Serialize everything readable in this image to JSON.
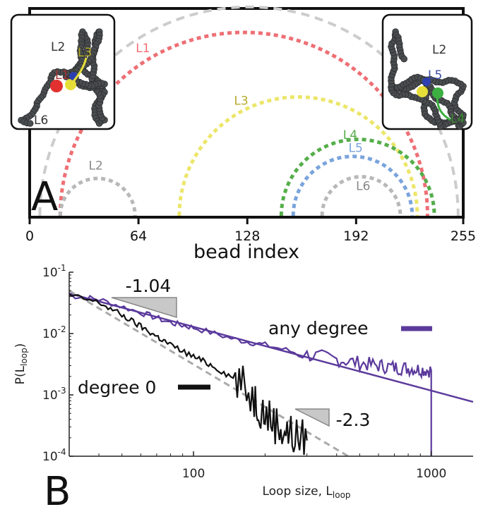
{
  "chart_data": [
    {
      "panel": "A",
      "type": "arc-diagram",
      "xlabel": "bead index",
      "xlim": [
        0,
        255
      ],
      "x_ticks": [
        "0",
        "64",
        "128",
        "192",
        "255"
      ],
      "loops": [
        {
          "name": "L1",
          "start": 18,
          "end": 234,
          "color": "#ee6f75"
        },
        {
          "name": "L2",
          "start": 18,
          "end": 62,
          "color": "#b8b8b8"
        },
        {
          "name": "L3",
          "start": 88,
          "end": 228,
          "color": "#ece66a"
        },
        {
          "name": "L4",
          "start": 148,
          "end": 238,
          "color": "#55ae4a"
        },
        {
          "name": "L5",
          "start": 155,
          "end": 225,
          "color": "#7aa4dc"
        },
        {
          "name": "L6",
          "start": 172,
          "end": 218,
          "color": "#b8b8b8"
        },
        {
          "name": "",
          "start": 6,
          "end": 252,
          "color": "#cccccc"
        }
      ],
      "inset_left_labels": [
        "L2",
        "L3",
        "L1",
        "L6"
      ],
      "inset_right_labels": [
        "L2",
        "L5",
        "L4"
      ]
    },
    {
      "panel": "B",
      "type": "line",
      "xlabel_main": "Loop size, L",
      "xlabel_sub": "loop",
      "ylabel_main": "P(L",
      "ylabel_sub": "loop",
      "ylabel_close": ")",
      "xscale": "log",
      "yscale": "log",
      "xlim": [
        30,
        1500
      ],
      "ylim": [
        0.0001,
        0.1
      ],
      "x_ticks": [
        "100",
        "1000"
      ],
      "y_ticks": [
        {
          "base": "10",
          "exp": "-1"
        },
        {
          "base": "10",
          "exp": "-2"
        },
        {
          "base": "10",
          "exp": "-3"
        },
        {
          "base": "10",
          "exp": "-4"
        }
      ],
      "series": [
        {
          "name": "any degree",
          "color": "#5b3a9c",
          "x": [
            30,
            40,
            60,
            80,
            100,
            150,
            200,
            300,
            400,
            500,
            600,
            700,
            800,
            900,
            1000,
            1000
          ],
          "y": [
            0.042,
            0.036,
            0.022,
            0.015,
            0.0125,
            0.008,
            0.0065,
            0.0045,
            0.0038,
            0.0033,
            0.003,
            0.0028,
            0.0027,
            0.0026,
            0.0025,
            0.0001
          ]
        },
        {
          "name": "degree 0",
          "color": "#111111",
          "x": [
            30,
            40,
            50,
            60,
            70,
            80,
            100,
            120,
            150,
            180,
            200,
            230,
            260,
            300
          ],
          "y": [
            0.042,
            0.032,
            0.02,
            0.013,
            0.009,
            0.0065,
            0.0042,
            0.003,
            0.0018,
            0.0009,
            0.0005,
            0.0003,
            0.00022,
            0.00018
          ]
        }
      ],
      "fits": [
        {
          "slope_label": "-1.04",
          "exponent": -1.04,
          "x": [
            30,
            1500
          ],
          "y_at_30": 0.045,
          "color": "#5b3a9c"
        },
        {
          "slope_label": "-2.3",
          "exponent": -2.3,
          "x": [
            30,
            450
          ],
          "y_at_30": 0.05,
          "color": "#aaaaaa"
        }
      ]
    }
  ]
}
